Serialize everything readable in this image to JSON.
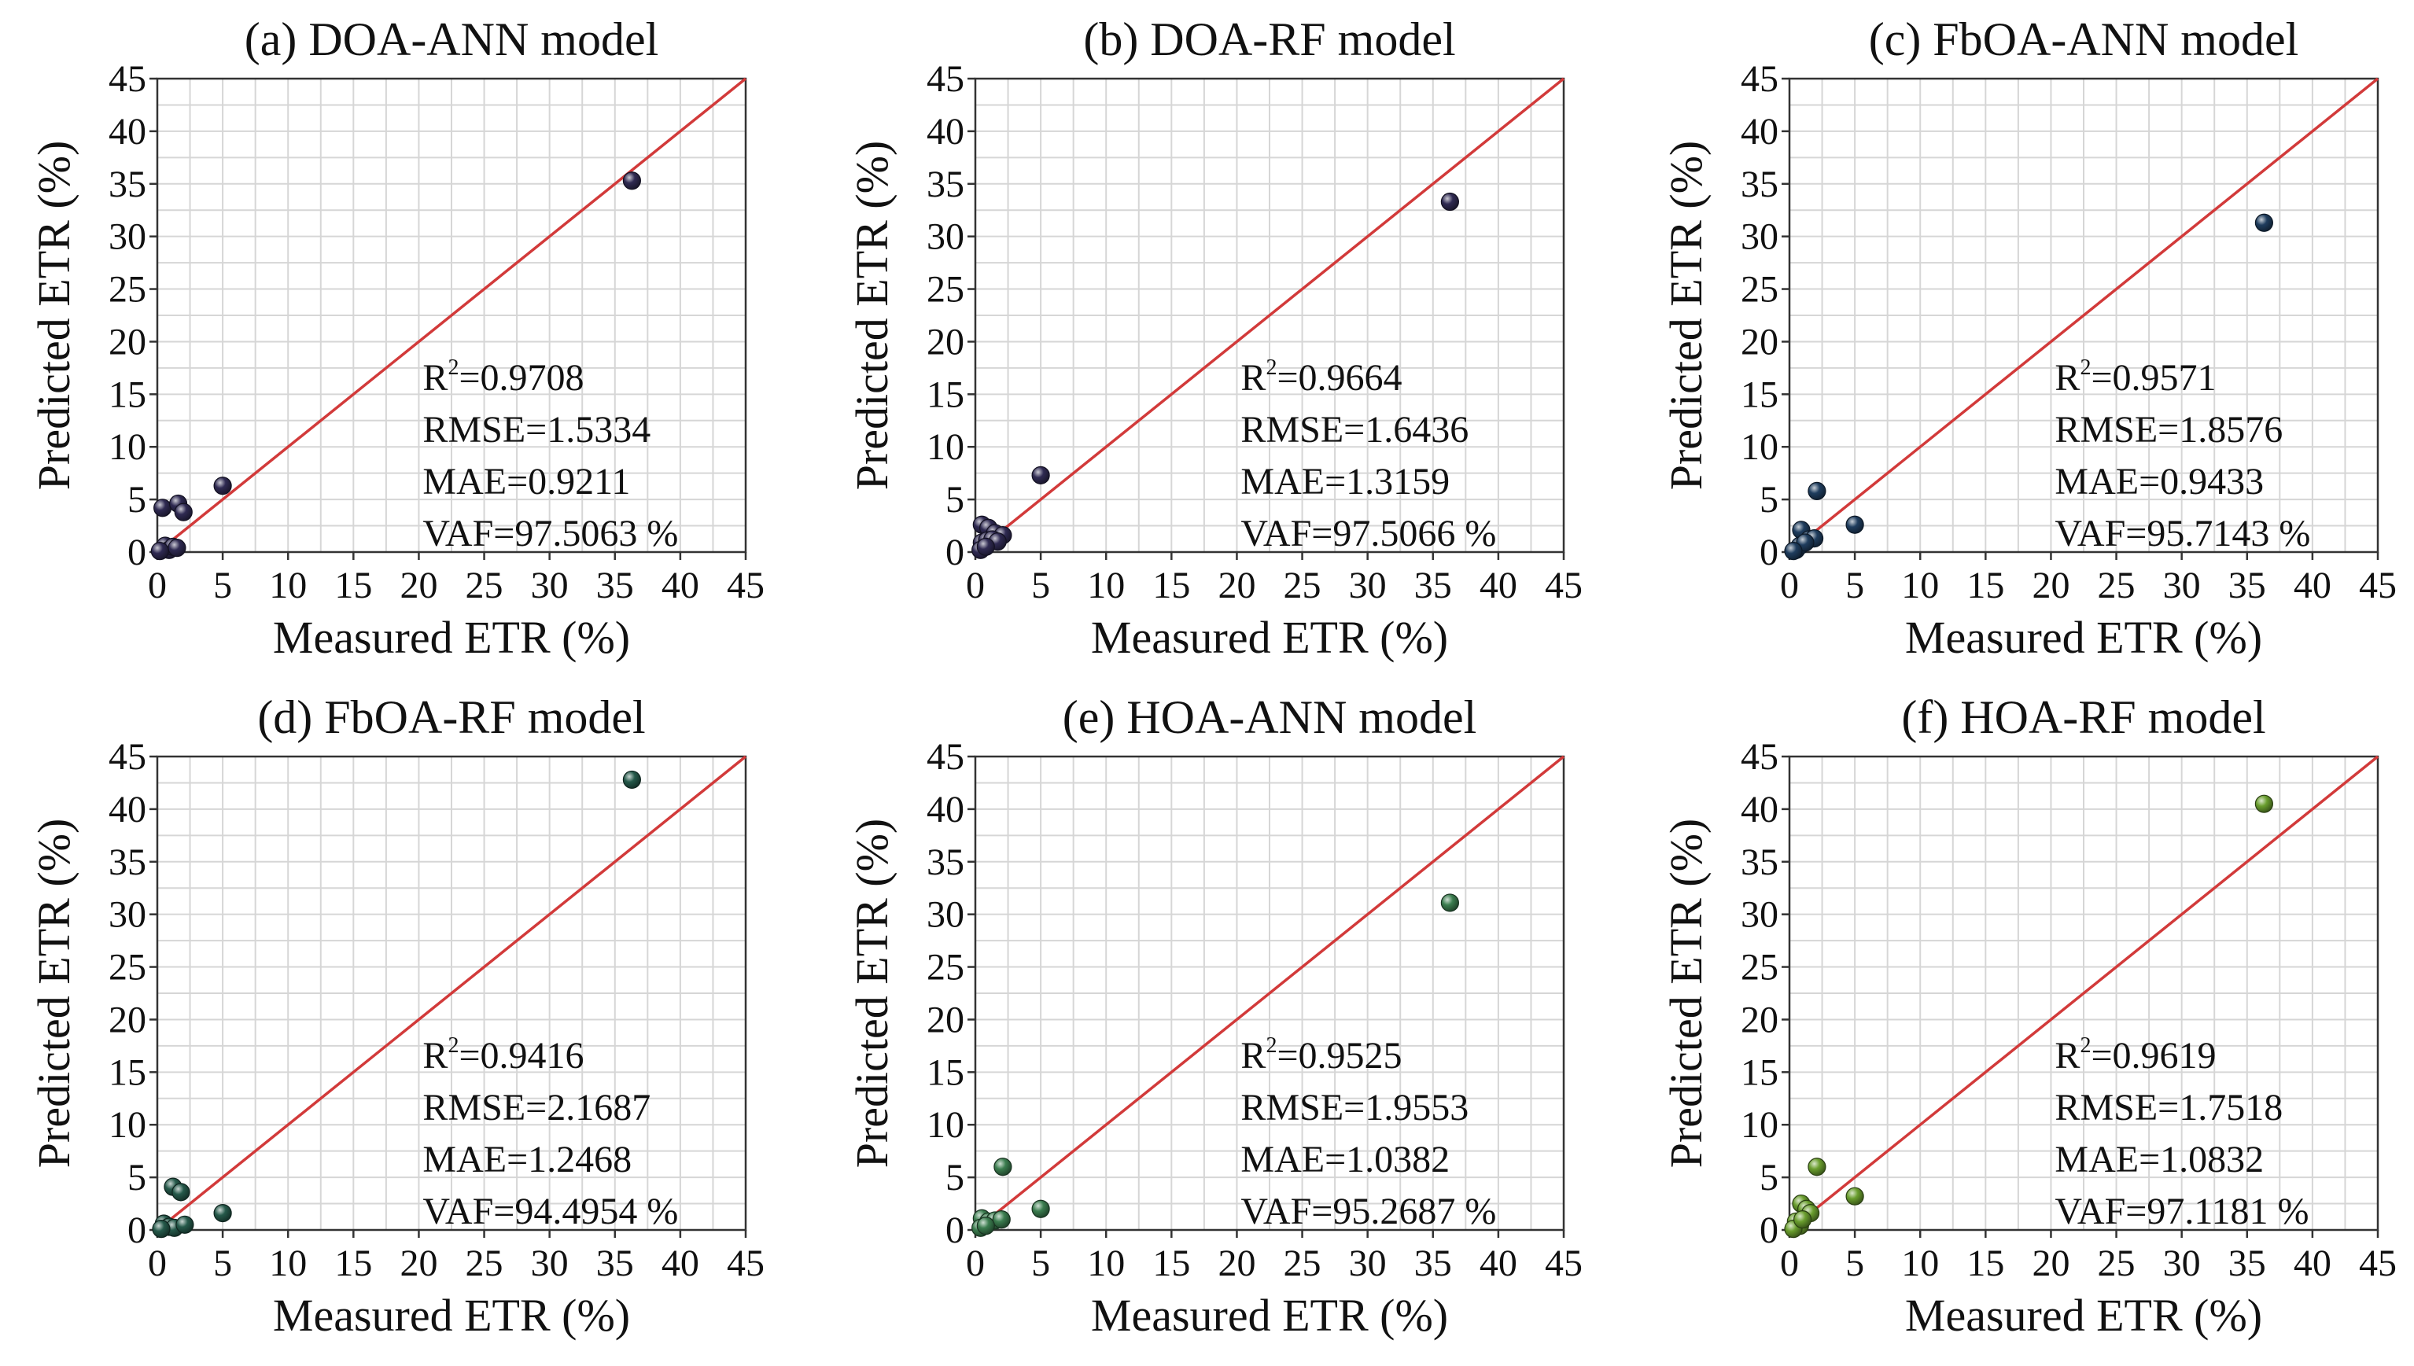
{
  "figure": {
    "colors": {
      "identity_line": "#d23a3a",
      "grid": "#d6d6d6",
      "axis": "#333333"
    }
  },
  "chart_data": [
    {
      "type": "scatter",
      "title": "(a) DOA-ANN model",
      "xlabel": "Measured ETR (%)",
      "ylabel": "Predicted ETR (%)",
      "xlim": [
        0,
        45
      ],
      "ylim": [
        0,
        45
      ],
      "ticks": [
        "0",
        "5",
        "10",
        "15",
        "20",
        "25",
        "30",
        "35",
        "40",
        "45"
      ],
      "grid": true,
      "identity_line": true,
      "marker_color": "#2f2a52",
      "stats": [
        "R²=0.9708",
        "RMSE=1.5334",
        "MAE=0.9211",
        "VAF=97.5063 %"
      ],
      "points": [
        [
          0.4,
          4.2
        ],
        [
          1.6,
          4.6
        ],
        [
          2.0,
          3.8
        ],
        [
          5.0,
          6.3
        ],
        [
          36.3,
          35.3
        ],
        [
          0.4,
          0.3
        ],
        [
          0.6,
          0.6
        ],
        [
          0.9,
          0.2
        ],
        [
          1.2,
          0.5
        ],
        [
          1.5,
          0.4
        ],
        [
          0.2,
          0.1
        ]
      ]
    },
    {
      "type": "scatter",
      "title": "(b) DOA-RF model",
      "xlabel": "Measured ETR (%)",
      "ylabel": "Predicted ETR (%)",
      "xlim": [
        0,
        45
      ],
      "ylim": [
        0,
        45
      ],
      "ticks": [
        "0",
        "5",
        "10",
        "15",
        "20",
        "25",
        "30",
        "35",
        "40",
        "45"
      ],
      "grid": true,
      "identity_line": true,
      "marker_color": "#2f2a52",
      "stats": [
        "R²=0.9664",
        "RMSE=1.6436",
        "MAE=1.3159",
        "VAF=97.5066 %"
      ],
      "points": [
        [
          0.5,
          2.6
        ],
        [
          1.0,
          2.3
        ],
        [
          1.5,
          1.8
        ],
        [
          2.1,
          1.6
        ],
        [
          5.0,
          7.3
        ],
        [
          36.3,
          33.3
        ],
        [
          0.5,
          0.9
        ],
        [
          0.9,
          1.1
        ],
        [
          1.3,
          1.2
        ],
        [
          1.7,
          1.0
        ],
        [
          0.4,
          0.2
        ],
        [
          0.8,
          0.5
        ]
      ]
    },
    {
      "type": "scatter",
      "title": "(c) FbOA-ANN model",
      "xlabel": "Measured ETR (%)",
      "ylabel": "Predicted ETR (%)",
      "xlim": [
        0,
        45
      ],
      "ylim": [
        0,
        45
      ],
      "ticks": [
        "0",
        "5",
        "10",
        "15",
        "20",
        "25",
        "30",
        "35",
        "40",
        "45"
      ],
      "grid": true,
      "identity_line": true,
      "marker_color": "#1f3d5e",
      "stats": [
        "R²=0.9571",
        "RMSE=1.8576",
        "MAE=0.9433",
        "VAF=95.7143 %"
      ],
      "points": [
        [
          0.9,
          2.1
        ],
        [
          2.1,
          5.8
        ],
        [
          5.0,
          2.6
        ],
        [
          36.3,
          31.3
        ],
        [
          1.5,
          1.2
        ],
        [
          1.9,
          1.3
        ],
        [
          0.5,
          0.2
        ],
        [
          0.8,
          0.6
        ],
        [
          1.2,
          0.9
        ],
        [
          0.3,
          0.1
        ]
      ]
    },
    {
      "type": "scatter",
      "title": "(d) FbOA-RF model",
      "xlabel": "Measured ETR (%)",
      "ylabel": "Predicted ETR (%)",
      "xlim": [
        0,
        45
      ],
      "ylim": [
        0,
        45
      ],
      "ticks": [
        "0",
        "5",
        "10",
        "15",
        "20",
        "25",
        "30",
        "35",
        "40",
        "45"
      ],
      "grid": true,
      "identity_line": true,
      "marker_color": "#25594a",
      "stats": [
        "R²=0.9416",
        "RMSE=2.1687",
        "MAE=1.2468",
        "VAF=94.4954 %"
      ],
      "points": [
        [
          1.2,
          4.1
        ],
        [
          1.8,
          3.6
        ],
        [
          5.0,
          1.6
        ],
        [
          36.3,
          42.8
        ],
        [
          0.5,
          0.6
        ],
        [
          0.9,
          0.3
        ],
        [
          1.3,
          0.2
        ],
        [
          2.1,
          0.5
        ],
        [
          0.3,
          0.1
        ]
      ]
    },
    {
      "type": "scatter",
      "title": "(e) HOA-ANN model",
      "xlabel": "Measured ETR (%)",
      "ylabel": "Predicted ETR (%)",
      "xlim": [
        0,
        45
      ],
      "ylim": [
        0,
        45
      ],
      "ticks": [
        "0",
        "5",
        "10",
        "15",
        "20",
        "25",
        "30",
        "35",
        "40",
        "45"
      ],
      "grid": true,
      "identity_line": true,
      "marker_color": "#3b7d4f",
      "stats": [
        "R²=0.9525",
        "RMSE=1.9553",
        "MAE=1.0382",
        "VAF=95.2687 %"
      ],
      "points": [
        [
          2.1,
          6.0
        ],
        [
          5.0,
          2.0
        ],
        [
          36.3,
          31.1
        ],
        [
          0.5,
          1.1
        ],
        [
          1.0,
          0.8
        ],
        [
          1.5,
          0.9
        ],
        [
          2.0,
          1.0
        ],
        [
          0.4,
          0.2
        ],
        [
          0.8,
          0.4
        ]
      ]
    },
    {
      "type": "scatter",
      "title": "(f) HOA-RF model",
      "xlabel": "Measured ETR (%)",
      "ylabel": "Predicted ETR (%)",
      "xlim": [
        0,
        45
      ],
      "ylim": [
        0,
        45
      ],
      "ticks": [
        "0",
        "5",
        "10",
        "15",
        "20",
        "25",
        "30",
        "35",
        "40",
        "45"
      ],
      "grid": true,
      "identity_line": true,
      "marker_color": "#6a9e2e",
      "stats": [
        "R²=0.9619",
        "RMSE=1.7518",
        "MAE=1.0832",
        "VAF=97.1181 %"
      ],
      "points": [
        [
          0.9,
          2.5
        ],
        [
          1.3,
          2.0
        ],
        [
          2.1,
          6.0
        ],
        [
          5.0,
          3.2
        ],
        [
          36.3,
          40.5
        ],
        [
          1.6,
          1.6
        ],
        [
          0.5,
          0.8
        ],
        [
          0.8,
          0.4
        ],
        [
          0.3,
          0.1
        ],
        [
          1.0,
          1.0
        ]
      ]
    }
  ]
}
